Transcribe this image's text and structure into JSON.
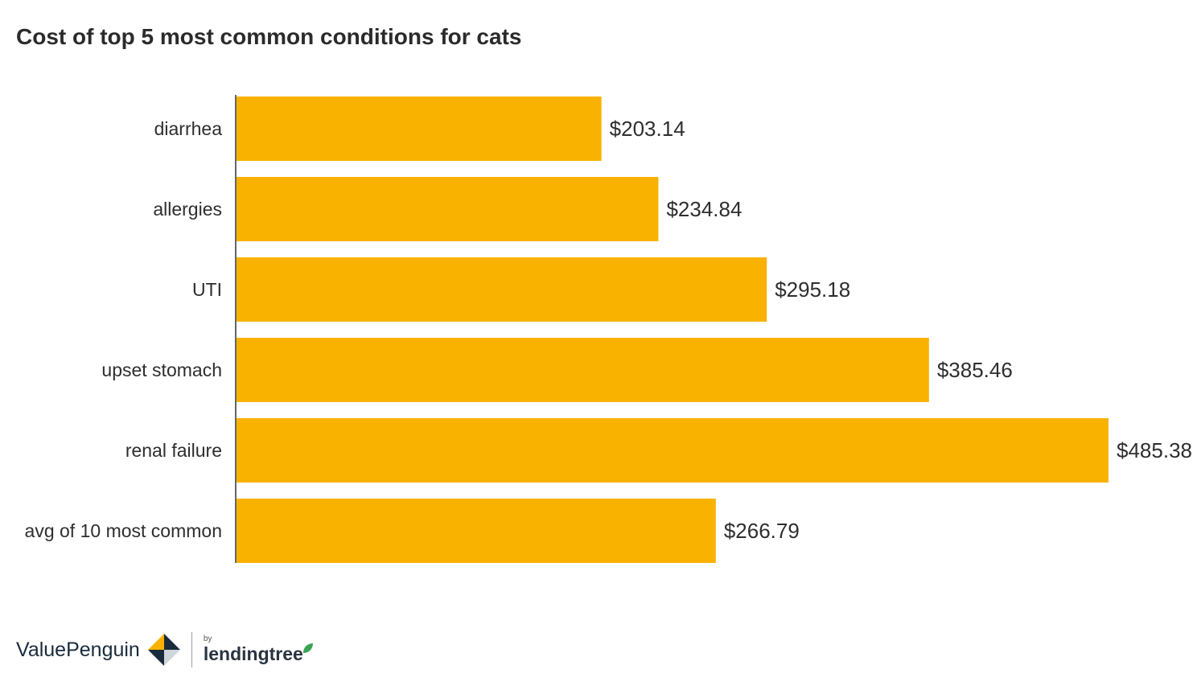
{
  "title": "Cost of top 5 most common conditions for cats",
  "chart_data": {
    "type": "bar",
    "orientation": "horizontal",
    "title": "Cost of top 5 most common conditions for cats",
    "categories": [
      "diarrhea",
      "allergies",
      "UTI",
      "upset stomach",
      "renal failure",
      "avg of 10 most common"
    ],
    "values": [
      203.14,
      234.84,
      295.18,
      385.46,
      485.38,
      266.79
    ],
    "value_labels": [
      "$203.14",
      "$234.84",
      "$295.18",
      "$385.46",
      "$485.38",
      "$266.79"
    ],
    "xlabel": "",
    "ylabel": "",
    "xlim": [
      0,
      485.38
    ],
    "grid": false,
    "bar_color": "#F9B200"
  },
  "footer": {
    "brand": "ValuePenguin",
    "by": "by",
    "partner": "lendingtree"
  },
  "colors": {
    "bar": "#F9B200",
    "text": "#2e2e2e",
    "brand_navy": "#1a2b3c",
    "brand_gold": "#F9B200",
    "partner_green": "#3aa655"
  }
}
